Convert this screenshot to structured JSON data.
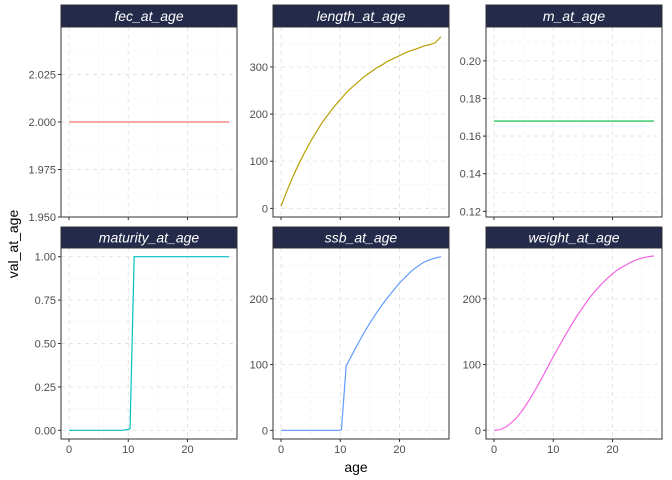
{
  "xlabel": "age",
  "ylabel": "val_at_age",
  "chart_data": [
    {
      "type": "line",
      "title": "fec_at_age",
      "color": "#F8766D",
      "xlim": [
        -1.35,
        28.35
      ],
      "ylim": [
        1.95,
        2.05
      ],
      "xticks": [
        0,
        10,
        20
      ],
      "yticks": [
        1.95,
        1.975,
        2.0,
        2.025
      ],
      "ytick_labels": [
        "1.950",
        "1.975",
        "2.000",
        "2.025"
      ],
      "x": [
        0,
        27
      ],
      "y": [
        2.0,
        2.0
      ]
    },
    {
      "type": "line",
      "title": "length_at_age",
      "color": "#B79F00",
      "xlim": [
        -1.35,
        28.35
      ],
      "ylim": [
        -18.3,
        384.7
      ],
      "xticks": [
        0,
        10,
        20
      ],
      "yticks": [
        0,
        100,
        200,
        300
      ],
      "ytick_labels": [
        "0",
        "100",
        "200",
        "300"
      ],
      "x": [
        0,
        1,
        2,
        3,
        4,
        5,
        6,
        7,
        8,
        9,
        10,
        11,
        12,
        13,
        14,
        15,
        16,
        17,
        18,
        19,
        20,
        21,
        22,
        23,
        24,
        25,
        26,
        27
      ],
      "y": [
        5,
        37,
        67,
        94,
        119,
        142,
        163,
        183,
        200,
        216,
        231,
        245,
        257,
        268,
        279,
        288,
        297,
        304,
        312,
        318,
        324,
        330,
        335,
        339,
        344,
        347,
        351,
        364
      ]
    },
    {
      "type": "line",
      "title": "m_at_age",
      "color": "#00BA38",
      "xlim": [
        -1.35,
        28.35
      ],
      "ylim": [
        0.117,
        0.218
      ],
      "xticks": [
        0,
        10,
        20
      ],
      "yticks": [
        0.12,
        0.14,
        0.16,
        0.18,
        0.2
      ],
      "ytick_labels": [
        "0.12",
        "0.14",
        "0.16",
        "0.18",
        "0.20"
      ],
      "x": [
        0,
        27
      ],
      "y": [
        0.168,
        0.168
      ]
    },
    {
      "type": "line",
      "title": "maturity_at_age",
      "color": "#00BFC4",
      "xlim": [
        -1.35,
        28.35
      ],
      "ylim": [
        -0.05,
        1.05
      ],
      "xticks": [
        0,
        10,
        20
      ],
      "yticks": [
        0,
        0.25,
        0.5,
        0.75,
        1.0
      ],
      "ytick_labels": [
        "0.00",
        "0.25",
        "0.50",
        "0.75",
        "1.00"
      ],
      "x": [
        0,
        9,
        10,
        10.3,
        11,
        27
      ],
      "y": [
        0,
        0,
        0.005,
        0.01,
        1.0,
        1.0
      ]
    },
    {
      "type": "line",
      "title": "ssb_at_age",
      "color": "#619CFF",
      "xlim": [
        -1.35,
        28.35
      ],
      "ylim": [
        -13.2,
        277.2
      ],
      "xticks": [
        0,
        10,
        20
      ],
      "yticks": [
        0,
        100,
        200
      ],
      "ytick_labels": [
        "0",
        "100",
        "200"
      ],
      "x": [
        0,
        10,
        10.2,
        11,
        12,
        13,
        14,
        15,
        16,
        17,
        18,
        19,
        20,
        21,
        22,
        23,
        24,
        25,
        26,
        27
      ],
      "y": [
        0,
        0,
        1,
        98,
        115,
        132,
        148,
        163,
        177,
        190,
        202,
        213,
        224,
        233,
        242,
        249,
        255,
        259,
        262,
        264
      ]
    },
    {
      "type": "line",
      "title": "weight_at_age",
      "color": "#F564E3",
      "xlim": [
        -1.35,
        28.35
      ],
      "ylim": [
        -13.2,
        277.2
      ],
      "xticks": [
        0,
        10,
        20
      ],
      "yticks": [
        0,
        100,
        200
      ],
      "ytick_labels": [
        "0",
        "100",
        "200"
      ],
      "x": [
        0,
        1,
        2,
        3,
        4,
        5,
        6,
        7,
        8,
        9,
        10,
        11,
        12,
        13,
        14,
        15,
        16,
        17,
        18,
        19,
        20,
        21,
        22,
        23,
        24,
        25,
        26,
        27
      ],
      "y": [
        0,
        1,
        5,
        12,
        21,
        33,
        47,
        62,
        78,
        95,
        112,
        128,
        144,
        159,
        174,
        187,
        200,
        211,
        221,
        230,
        238,
        245,
        250,
        255,
        259,
        262,
        264,
        265
      ]
    }
  ]
}
